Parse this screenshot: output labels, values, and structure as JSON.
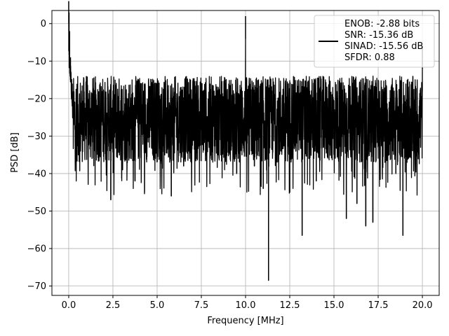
{
  "chart_data": {
    "type": "line",
    "xlabel": "Frequency [MHz]",
    "ylabel": "PSD [dB]",
    "xlim": [
      -0.95,
      20.95
    ],
    "ylim": [
      -72.5,
      3.5
    ],
    "x_ticks": [
      0.0,
      2.5,
      5.0,
      7.5,
      10.0,
      12.5,
      15.0,
      17.5,
      20.0
    ],
    "x_tick_labels": [
      "0.0",
      "2.5",
      "5.0",
      "7.5",
      "10.0",
      "12.5",
      "15.0",
      "17.5",
      "20.0"
    ],
    "y_ticks": [
      0,
      -10,
      -20,
      -30,
      -40,
      -50,
      -60,
      -70
    ],
    "y_tick_labels": [
      "0",
      "−10",
      "−20",
      "−30",
      "−40",
      "−50",
      "−60",
      "−70"
    ],
    "grid": true,
    "legend_position": "top-right",
    "series": [
      {
        "name": "ENOB: -2.88 bits\nSNR: -15.36 dB\nSINAD: -15.56 dB\nSFDR: 0.88",
        "legend_lines": [
          "ENOB: -2.88 bits",
          "SNR: -15.36 dB",
          "SINAD: -15.56 dB",
          "SFDR: 0.88"
        ],
        "color": "#000000",
        "noise_floor_band_db": [
          -37,
          -14
        ],
        "x": [
          0.0,
          0.02,
          0.05,
          0.1,
          0.2,
          0.5,
          1.0,
          1.5,
          2.38,
          3.0,
          3.75,
          5.0,
          5.8,
          6.5,
          7.5,
          8.5,
          9.5,
          10.0,
          10.5,
          11.0,
          11.3,
          12.0,
          12.5,
          13.2,
          13.5,
          14.0,
          15.0,
          15.7,
          16.3,
          16.8,
          17.2,
          17.8,
          18.5,
          18.9,
          19.5,
          20.0
        ],
        "y": [
          0,
          -3,
          -8,
          -15,
          -22,
          -25,
          -20,
          -30,
          -47,
          -26,
          -42,
          -33,
          -46,
          -38,
          -22,
          -36,
          -40,
          -4,
          -38,
          -44,
          -68.5,
          -34,
          -45,
          -56.5,
          -28,
          -42,
          -35,
          -52,
          -48,
          -54,
          -53,
          -24,
          -40,
          -56.5,
          -32,
          -12
        ]
      }
    ]
  }
}
